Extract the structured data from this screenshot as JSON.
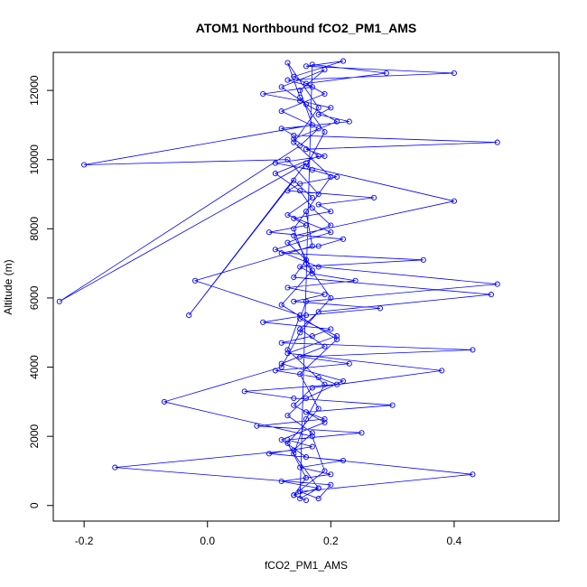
{
  "chart_data": {
    "type": "scatter",
    "title": "ATOM1 Northbound fCO2_PM1_AMS",
    "xlabel": "fCO2_PM1_AMS",
    "ylabel": "Altitude (m)",
    "xlim": [
      -0.25,
      0.57
    ],
    "ylim": [
      -450,
      13100
    ],
    "x_ticks": [
      -0.2,
      0.0,
      0.2,
      0.4
    ],
    "x_tick_labels": [
      "-0.2",
      "0.0",
      "0.2",
      "0.4"
    ],
    "y_ticks": [
      0,
      2000,
      4000,
      6000,
      8000,
      10000,
      12000
    ],
    "y_tick_labels": [
      "0",
      "2000",
      "4000",
      "6000",
      "8000",
      "10000",
      "12000"
    ],
    "marker": "open-circle",
    "connected": true,
    "color": "#0000ff",
    "series": [
      {
        "x": [
          0.16,
          0.14,
          0.18,
          0.12,
          0.2,
          0.15,
          0.22,
          0.1,
          0.17,
          0.13,
          0.25,
          0.08,
          0.19,
          0.16,
          0.3,
          0.14,
          0.06,
          0.21,
          0.18,
          0.11,
          0.23,
          0.15,
          0.43,
          0.12,
          0.17,
          0.2,
          0.09,
          0.16,
          0.28,
          0.14,
          0.19,
          0.13,
          0.24,
          0.17,
          0.15,
          0.35,
          0.12,
          0.18,
          0.22,
          0.1,
          0.16,
          0.14,
          0.2,
          0.18,
          0.27,
          0.13,
          0.15,
          0.21,
          0.17,
          0.11,
          0.19,
          0.16,
          0.47,
          0.14,
          0.12,
          0.23,
          0.18,
          0.2,
          0.15,
          0.09,
          0.17,
          0.13,
          0.4,
          0.16,
          0.22,
          0.14,
          0.19,
          0.12,
          0.18,
          0.15,
          -0.24,
          0.16,
          -0.03,
          0.14,
          0.17,
          0.13,
          0.2,
          0.11,
          0.18,
          0.47,
          0.16,
          0.15,
          0.21,
          0.13,
          0.38,
          0.17,
          0.14,
          0.19,
          0.12,
          0.16,
          0.43,
          0.15,
          0.18,
          0.2,
          -0.15,
          0.14,
          0.17,
          0.13,
          0.16,
          0.22,
          0.12,
          0.19,
          0.15,
          0.18,
          0.46,
          0.14,
          0.16,
          0.13,
          0.2,
          0.17,
          0.15,
          0.11,
          0.18,
          0.14,
          0.21,
          0.16,
          0.12,
          0.19,
          0.15,
          0.17,
          -0.2,
          0.13,
          0.18,
          0.14,
          0.16,
          0.2,
          0.15,
          0.12,
          -0.07,
          0.17,
          0.19,
          0.14,
          0.16,
          0.13,
          0.18,
          0.15,
          0.21,
          0.12,
          0.17,
          0.14,
          0.4,
          0.16,
          0.19,
          0.15,
          0.13,
          0.18,
          0.14,
          0.2,
          0.16,
          0.17,
          -0.02,
          0.15,
          0.13,
          0.19,
          0.16,
          0.14,
          0.18,
          0.15,
          0.17,
          0.29,
          0.16
        ],
        "y": [
          150,
          300,
          500,
          700,
          900,
          1100,
          1300,
          1500,
          1700,
          1900,
          2100,
          2300,
          2500,
          2700,
          2900,
          3100,
          3300,
          3500,
          3700,
          3900,
          4100,
          4300,
          4500,
          4700,
          4900,
          5100,
          5300,
          5500,
          5700,
          5900,
          6100,
          6300,
          6500,
          6700,
          6900,
          7100,
          7300,
          7500,
          7700,
          7900,
          8100,
          8300,
          8500,
          8700,
          8900,
          9100,
          9300,
          9500,
          9700,
          9900,
          10100,
          10300,
          10500,
          10700,
          10900,
          11100,
          11300,
          11500,
          11700,
          11900,
          12100,
          12300,
          12500,
          12700,
          12850,
          12400,
          11900,
          11400,
          10900,
          10400,
          5900,
          9900,
          5500,
          9400,
          8900,
          8400,
          7900,
          7400,
          6900,
          6400,
          5900,
          5400,
          4900,
          4400,
          3900,
          3400,
          2900,
          2400,
          1900,
          1400,
          900,
          400,
          200,
          600,
          1100,
          1600,
          2100,
          2600,
          3100,
          3600,
          4100,
          4600,
          5100,
          5600,
          6100,
          6600,
          7100,
          7600,
          8100,
          8600,
          9100,
          9600,
          10100,
          10600,
          11100,
          11600,
          12100,
          12600,
          12000,
          11000,
          9850,
          10000,
          9000,
          8000,
          7000,
          6000,
          5000,
          4000,
          3000,
          2000,
          1000,
          300,
          800,
          1800,
          2800,
          3800,
          4800,
          5800,
          6800,
          7800,
          8800,
          9800,
          10800,
          11800,
          12800,
          11500,
          10500,
          9500,
          8500,
          7500,
          6500,
          5500,
          4500,
          3500,
          2500,
          1500,
          500,
          200,
          12750,
          12500,
          12200
        ]
      }
    ]
  }
}
